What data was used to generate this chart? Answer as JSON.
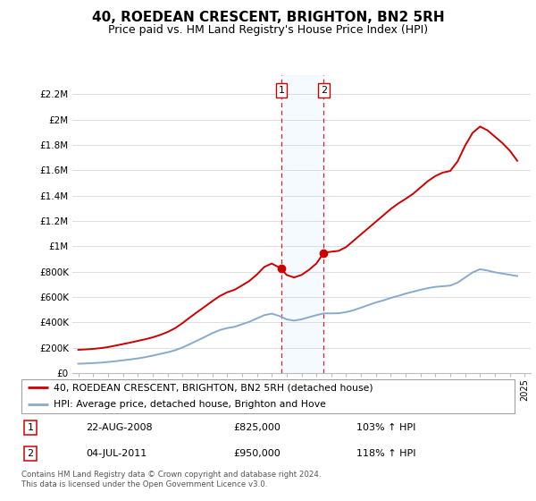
{
  "title": "40, ROEDEAN CRESCENT, BRIGHTON, BN2 5RH",
  "subtitle": "Price paid vs. HM Land Registry's House Price Index (HPI)",
  "title_fontsize": 11,
  "subtitle_fontsize": 9,
  "ylabel_ticks": [
    "£0",
    "£200K",
    "£400K",
    "£600K",
    "£800K",
    "£1M",
    "£1.2M",
    "£1.4M",
    "£1.6M",
    "£1.8M",
    "£2M",
    "£2.2M"
  ],
  "ytick_values": [
    0,
    200000,
    400000,
    600000,
    800000,
    1000000,
    1200000,
    1400000,
    1600000,
    1800000,
    2000000,
    2200000
  ],
  "ylim": [
    0,
    2350000
  ],
  "xlim_start": 1994.6,
  "xlim_end": 2025.4,
  "red_line_color": "#cc0000",
  "blue_line_color": "#88aacc",
  "grid_color": "#dddddd",
  "background_color": "#ffffff",
  "sale1_x": 2008.64,
  "sale1_y": 825000,
  "sale2_x": 2011.5,
  "sale2_y": 950000,
  "sale1_date": "22-AUG-2008",
  "sale1_price": "£825,000",
  "sale1_hpi": "103% ↑ HPI",
  "sale2_date": "04-JUL-2011",
  "sale2_price": "£950,000",
  "sale2_hpi": "118% ↑ HPI",
  "legend_line1": "40, ROEDEAN CRESCENT, BRIGHTON, BN2 5RH (detached house)",
  "legend_line2": "HPI: Average price, detached house, Brighton and Hove",
  "footnote": "Contains HM Land Registry data © Crown copyright and database right 2024.\nThis data is licensed under the Open Government Licence v3.0.",
  "red_x": [
    1995.0,
    1995.5,
    1996.0,
    1996.5,
    1997.0,
    1997.5,
    1998.0,
    1998.5,
    1999.0,
    1999.5,
    2000.0,
    2000.5,
    2001.0,
    2001.5,
    2002.0,
    2002.5,
    2003.0,
    2003.5,
    2004.0,
    2004.5,
    2005.0,
    2005.5,
    2006.0,
    2006.5,
    2007.0,
    2007.5,
    2008.0,
    2008.64,
    2009.0,
    2009.5,
    2010.0,
    2010.5,
    2011.0,
    2011.5,
    2012.0,
    2012.5,
    2013.0,
    2013.5,
    2014.0,
    2014.5,
    2015.0,
    2015.5,
    2016.0,
    2016.5,
    2017.0,
    2017.5,
    2018.0,
    2018.5,
    2019.0,
    2019.5,
    2020.0,
    2020.5,
    2021.0,
    2021.5,
    2022.0,
    2022.5,
    2023.0,
    2023.5,
    2024.0,
    2024.5
  ],
  "red_y": [
    185000,
    188000,
    192000,
    198000,
    206000,
    218000,
    230000,
    242000,
    255000,
    268000,
    283000,
    302000,
    325000,
    355000,
    395000,
    440000,
    483000,
    525000,
    568000,
    608000,
    638000,
    658000,
    692000,
    728000,
    778000,
    838000,
    865000,
    825000,
    775000,
    755000,
    775000,
    815000,
    865000,
    950000,
    958000,
    965000,
    995000,
    1045000,
    1095000,
    1145000,
    1195000,
    1245000,
    1295000,
    1338000,
    1375000,
    1415000,
    1465000,
    1515000,
    1555000,
    1582000,
    1595000,
    1672000,
    1795000,
    1895000,
    1945000,
    1915000,
    1865000,
    1815000,
    1755000,
    1675000
  ],
  "blue_x": [
    1995.0,
    1995.5,
    1996.0,
    1996.5,
    1997.0,
    1997.5,
    1998.0,
    1998.5,
    1999.0,
    1999.5,
    2000.0,
    2000.5,
    2001.0,
    2001.5,
    2002.0,
    2002.5,
    2003.0,
    2003.5,
    2004.0,
    2004.5,
    2005.0,
    2005.5,
    2006.0,
    2006.5,
    2007.0,
    2007.5,
    2008.0,
    2008.5,
    2009.0,
    2009.5,
    2010.0,
    2010.5,
    2011.0,
    2011.5,
    2012.0,
    2012.5,
    2013.0,
    2013.5,
    2014.0,
    2014.5,
    2015.0,
    2015.5,
    2016.0,
    2016.5,
    2017.0,
    2017.5,
    2018.0,
    2018.5,
    2019.0,
    2019.5,
    2020.0,
    2020.5,
    2021.0,
    2021.5,
    2022.0,
    2022.5,
    2023.0,
    2023.5,
    2024.0,
    2024.5
  ],
  "blue_y": [
    75000,
    77000,
    80000,
    84000,
    89000,
    95000,
    102000,
    109000,
    117000,
    127000,
    139000,
    152000,
    165000,
    181000,
    203000,
    230000,
    258000,
    286000,
    316000,
    340000,
    356000,
    366000,
    386000,
    406000,
    432000,
    458000,
    470000,
    452000,
    425000,
    415000,
    425000,
    442000,
    458000,
    472000,
    472000,
    473000,
    482000,
    497000,
    517000,
    538000,
    558000,
    574000,
    594000,
    610000,
    628000,
    643000,
    658000,
    671000,
    681000,
    686000,
    691000,
    715000,
    755000,
    795000,
    820000,
    810000,
    796000,
    786000,
    776000,
    766000
  ]
}
